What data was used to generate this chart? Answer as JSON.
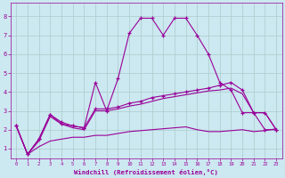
{
  "xlabel": "Windchill (Refroidissement éolien,°C)",
  "background_color": "#cce8f0",
  "grid_color": "#aacccc",
  "line_color": "#990099",
  "x_ticks": [
    0,
    1,
    2,
    3,
    4,
    5,
    6,
    7,
    8,
    9,
    10,
    11,
    12,
    13,
    14,
    15,
    16,
    17,
    18,
    19,
    20,
    21,
    22,
    23
  ],
  "y_ticks": [
    1,
    2,
    3,
    4,
    5,
    6,
    7,
    8
  ],
  "xlim": [
    -0.5,
    23.5
  ],
  "ylim": [
    0.5,
    8.7
  ],
  "series1_x": [
    0,
    1,
    2,
    3,
    4,
    5,
    6,
    7,
    8,
    9,
    10,
    11,
    12,
    13,
    14,
    15,
    16,
    17,
    18,
    19,
    20,
    21,
    22,
    23
  ],
  "series1_y": [
    2.2,
    0.7,
    1.5,
    2.8,
    2.3,
    2.2,
    2.1,
    4.5,
    3.0,
    4.7,
    7.1,
    7.9,
    7.9,
    7.0,
    7.9,
    7.9,
    7.0,
    6.0,
    4.5,
    4.1,
    2.9,
    2.9,
    2.0,
    2.0
  ],
  "series2_x": [
    0,
    1,
    2,
    3,
    4,
    5,
    6,
    7,
    8,
    9,
    10,
    11,
    12,
    13,
    14,
    15,
    16,
    17,
    18,
    19,
    20,
    21,
    22,
    23
  ],
  "series2_y": [
    2.2,
    0.7,
    1.5,
    2.8,
    2.4,
    2.2,
    2.1,
    3.1,
    3.1,
    3.2,
    3.4,
    3.5,
    3.7,
    3.8,
    3.9,
    4.0,
    4.1,
    4.2,
    4.35,
    4.5,
    4.1,
    2.9,
    2.9,
    2.0
  ],
  "series3_x": [
    0,
    1,
    2,
    3,
    4,
    5,
    6,
    7,
    8,
    9,
    10,
    11,
    12,
    13,
    14,
    15,
    16,
    17,
    18,
    19,
    20,
    21,
    22,
    23
  ],
  "series3_y": [
    2.2,
    0.7,
    1.4,
    2.7,
    2.3,
    2.1,
    2.0,
    3.0,
    3.0,
    3.1,
    3.25,
    3.35,
    3.5,
    3.65,
    3.75,
    3.85,
    3.95,
    4.05,
    4.1,
    4.2,
    3.9,
    2.9,
    2.9,
    2.0
  ],
  "series4_x": [
    0,
    1,
    2,
    3,
    4,
    5,
    6,
    7,
    8,
    9,
    10,
    11,
    12,
    13,
    14,
    15,
    16,
    17,
    18,
    19,
    20,
    21,
    22,
    23
  ],
  "series4_y": [
    2.2,
    0.7,
    1.1,
    1.4,
    1.5,
    1.6,
    1.6,
    1.7,
    1.7,
    1.8,
    1.9,
    1.95,
    2.0,
    2.05,
    2.1,
    2.15,
    2.0,
    1.9,
    1.9,
    1.95,
    2.0,
    1.9,
    1.95,
    2.05
  ]
}
